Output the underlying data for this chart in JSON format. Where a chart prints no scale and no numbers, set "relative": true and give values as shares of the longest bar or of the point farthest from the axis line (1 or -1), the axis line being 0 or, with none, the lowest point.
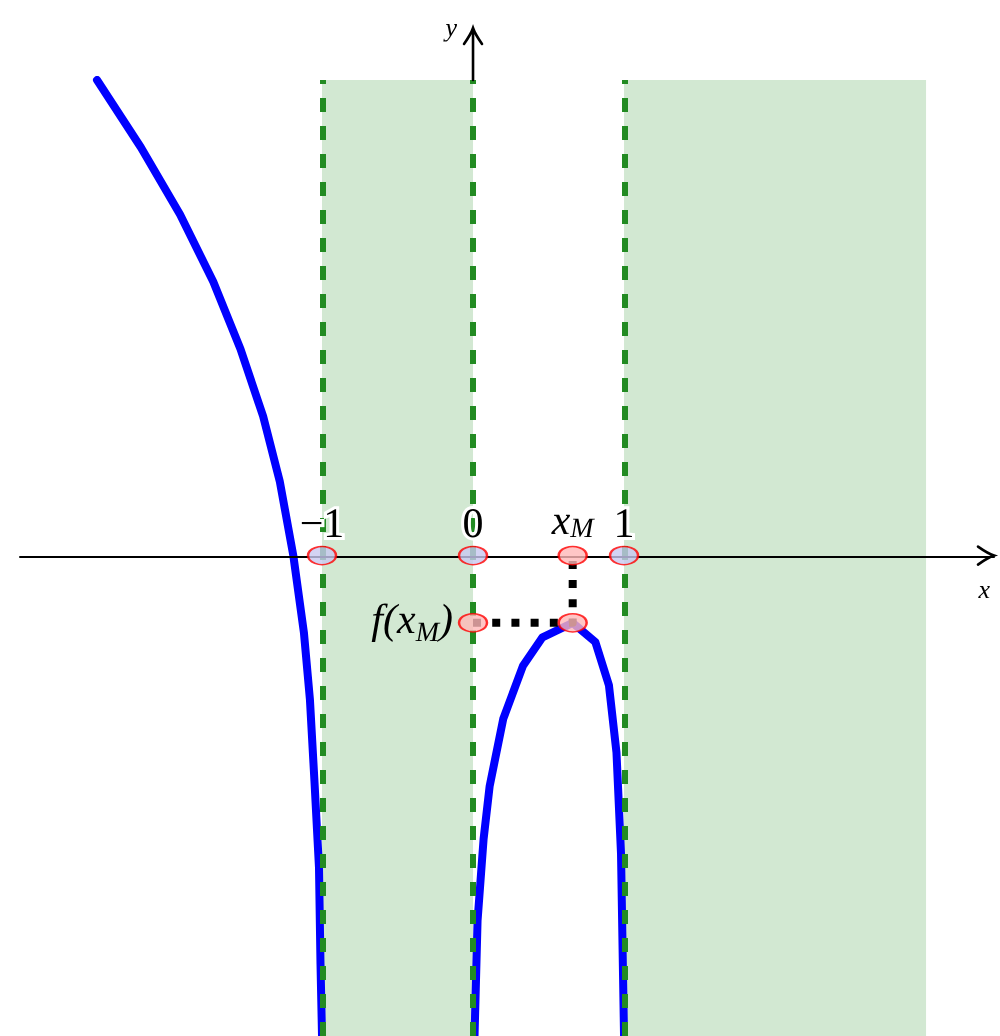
{
  "chart_data": {
    "type": "line",
    "relative": true,
    "xlabel": "x",
    "ylabel": "y",
    "xlim": [
      -3,
      3.45
    ],
    "xticks": [
      {
        "value": -1,
        "label": "−1"
      },
      0,
      {
        "value": 0.66,
        "label": "x$_{M}$"
      },
      1
    ],
    "series": [
      {
        "x": [
          -2.49,
          -2.2,
          -1.94,
          -1.72,
          -1.54,
          -1.39,
          -1.28,
          -1.19,
          -1.12,
          -1.08,
          -1.05,
          -1.02,
          -1.01,
          -1.0
        ],
        "values": [
          0.99,
          0.85,
          0.71,
          0.57,
          0.43,
          0.29,
          0.155,
          0,
          -0.16,
          -0.3,
          -0.47,
          -0.65,
          -0.85,
          -1
        ],
        "color": "#0000ff"
      },
      {
        "x": [
          0.01,
          0.03,
          0.07,
          0.11,
          0.2,
          0.33,
          0.46,
          0.66,
          0.81,
          0.9,
          0.95,
          0.98,
          1.0
        ],
        "values": [
          -1,
          -0.76,
          -0.59,
          -0.48,
          -0.34,
          -0.23,
          -0.17,
          -0.14,
          -0.18,
          -0.27,
          -0.41,
          -0.62,
          -1
        ],
        "color": "#0000ff"
      },
      {
        "type": "line",
        "x": [
          0,
          0.66,
          0.66
        ],
        "values": [
          -0.14,
          -0.14,
          0
        ],
        "color": "#000000",
        "line_style": "dotted"
      },
      {
        "type": "scatter",
        "x": [
          -1,
          0,
          0.66,
          1,
          0,
          0.66
        ],
        "values": [
          0,
          0,
          0,
          0,
          -0.14,
          -0.14
        ],
        "colors": [
          "#c8c8f0",
          "#c8c8f0",
          "#ffb8b8",
          "#c8c8f0",
          "#ffb8b8",
          "#ffb8b8"
        ],
        "marker": "circle"
      }
    ],
    "ref_lines": [
      {
        "axis": "x",
        "value": -1,
        "color": "#228b22",
        "line_style": "dashed"
      },
      {
        "axis": "x",
        "value": 0,
        "color": "#228b22",
        "line_style": "dashed"
      },
      {
        "axis": "x",
        "value": 1,
        "color": "#228b22",
        "line_style": "dashed"
      }
    ],
    "bands": [
      {
        "axis": "x",
        "from": -1,
        "to": 0,
        "color": "#d2e8d2"
      },
      {
        "axis": "x",
        "from": 1,
        "to": 3,
        "color": "#d2e8d2"
      }
    ],
    "annotations": [
      {
        "text": "f(x$_{M}$)",
        "x": 0,
        "y": -0.14
      }
    ],
    "grid": false
  }
}
